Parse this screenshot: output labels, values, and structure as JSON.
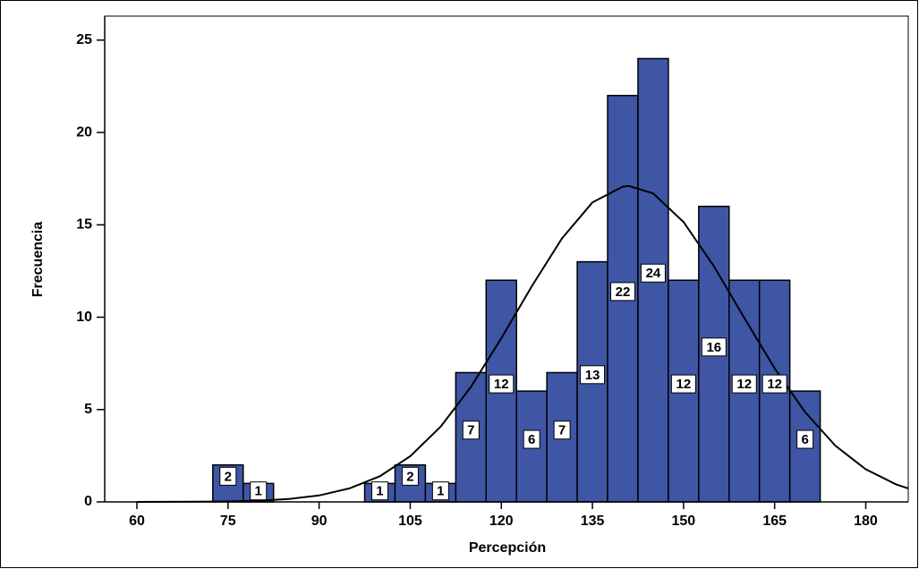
{
  "chart_data": {
    "type": "histogram",
    "x_label": "Percepción",
    "y_label": "Frecuencia",
    "bins": [
      72.5,
      77.5,
      82.5,
      87.5,
      92.5,
      97.5,
      102.5,
      107.5,
      112.5,
      117.5,
      122.5,
      127.5,
      132.5,
      137.5,
      142.5,
      147.5,
      152.5,
      157.5,
      162.5,
      167.5,
      172.5
    ],
    "values": [
      2,
      1,
      0,
      0,
      0,
      1,
      2,
      1,
      7,
      12,
      6,
      7,
      13,
      22,
      24,
      12,
      16,
      12,
      12,
      6
    ],
    "color": "#3f56a5",
    "curve": {
      "x": [
        60,
        65,
        70,
        75,
        80,
        85,
        90,
        95,
        100,
        105,
        110,
        115,
        120,
        125,
        130,
        135,
        140,
        141,
        145,
        150,
        155,
        160,
        165,
        170,
        175,
        180,
        185,
        187
      ],
      "values": [
        0.001,
        0.003,
        0.009,
        0.026,
        0.066,
        0.16,
        0.35,
        0.73,
        1.39,
        2.47,
        4.07,
        6.23,
        8.86,
        11.67,
        14.27,
        16.21,
        17.07,
        17.1,
        16.7,
        15.15,
        12.76,
        9.97,
        7.23,
        4.87,
        3.04,
        1.77,
        0.95,
        0.73
      ]
    },
    "xlim": [
      54.7,
      187
    ],
    "ylim": [
      0,
      26.3
    ],
    "xticks": [
      60,
      75,
      90,
      105,
      120,
      135,
      150,
      165,
      180
    ],
    "yticks": [
      0,
      5,
      10,
      15,
      20,
      25
    ]
  }
}
